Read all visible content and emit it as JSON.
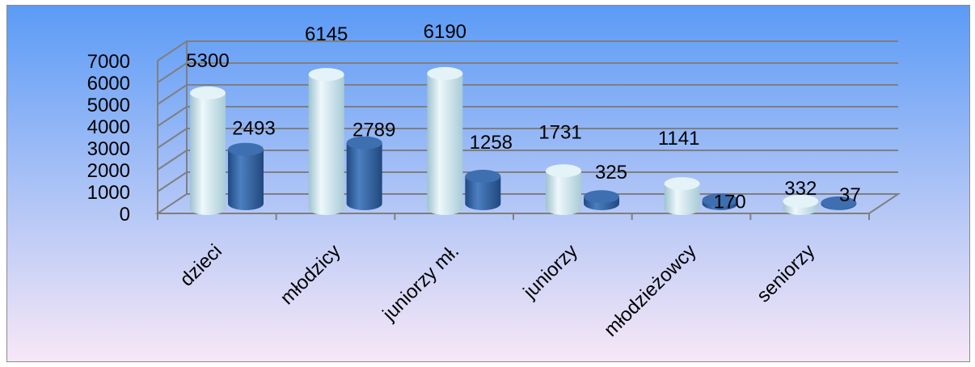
{
  "chart_data": {
    "type": "bar",
    "style": "3d-cylinder",
    "categories": [
      "dzieci",
      "młodzicy",
      "juniorzy mł.",
      "juniorzy",
      "młodzieżowcy",
      "seniorzy"
    ],
    "series": [
      {
        "values": [
          5300,
          6145,
          6190,
          1731,
          1141,
          332
        ],
        "color": "#cfe6ee"
      },
      {
        "values": [
          2493,
          2789,
          1258,
          325,
          170,
          37
        ],
        "color": "#2f5f9e"
      }
    ],
    "ylim": [
      0,
      7000
    ],
    "yticks": [
      "0",
      "1000",
      "2000",
      "3000",
      "4000",
      "5000",
      "6000",
      "7000"
    ],
    "grid": true,
    "legend": "none",
    "background_gradient": [
      "#5b9bf6",
      "#f8e8f6"
    ]
  }
}
